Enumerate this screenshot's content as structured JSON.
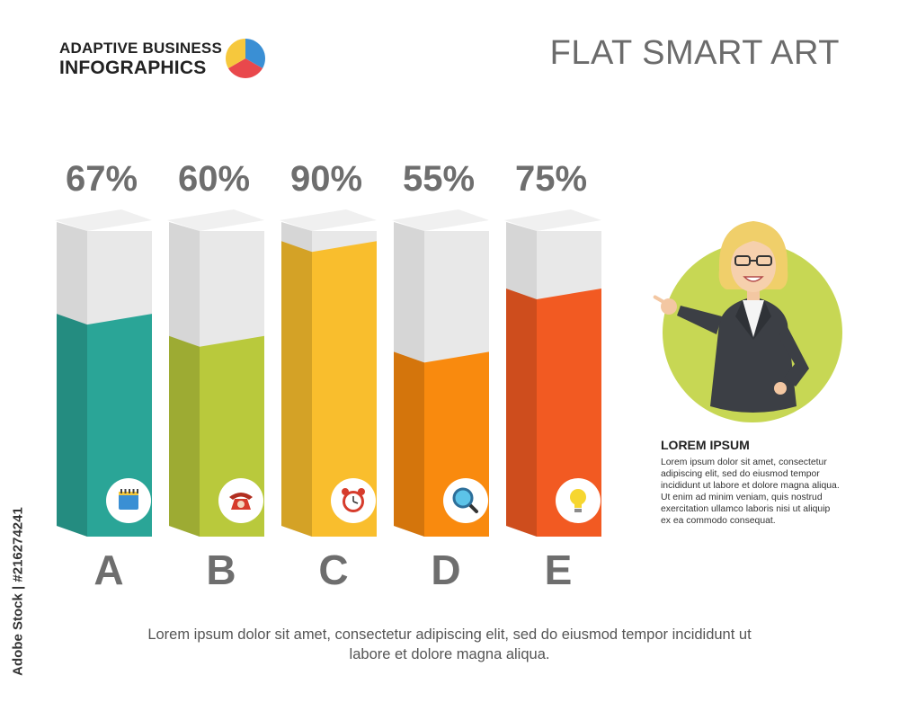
{
  "header": {
    "logo_line1": "ADAPTIVE BUSINESS",
    "logo_line2": "INFOGRAPHICS",
    "logo_colors": [
      "#3a8fd4",
      "#e9484c",
      "#f6c83d"
    ],
    "title": "FLAT SMART ART"
  },
  "chart_data": {
    "type": "bar",
    "categories": [
      "A",
      "B",
      "C",
      "D",
      "E"
    ],
    "values": [
      67,
      60,
      90,
      55,
      75
    ],
    "value_labels": [
      "67%",
      "60%",
      "90%",
      "55%",
      "75%"
    ],
    "ylim": [
      0,
      100
    ],
    "colors": [
      "#2aa597",
      "#b9c93c",
      "#f9be2d",
      "#f98a0e",
      "#f25a22"
    ],
    "icons": [
      "notepad-icon",
      "telephone-icon",
      "alarm-clock-icon",
      "magnifier-icon",
      "lightbulb-icon"
    ]
  },
  "side_panel": {
    "heading": "LOREM IPSUM",
    "body": "Lorem ipsum dolor sit amet, consectetur adipiscing elit, sed do eiusmod tempor incididunt ut labore et dolore magna aliqua. Ut enim ad minim veniam, quis nostrud exercitation ullamco laboris nisi ut aliquip ex ea commodo consequat."
  },
  "footer": {
    "text": "Lorem ipsum dolor sit amet, consectetur adipiscing elit, sed do eiusmod tempor incididunt ut labore et dolore magna aliqua."
  },
  "watermark": {
    "text": "Adobe Stock | #216274241"
  }
}
